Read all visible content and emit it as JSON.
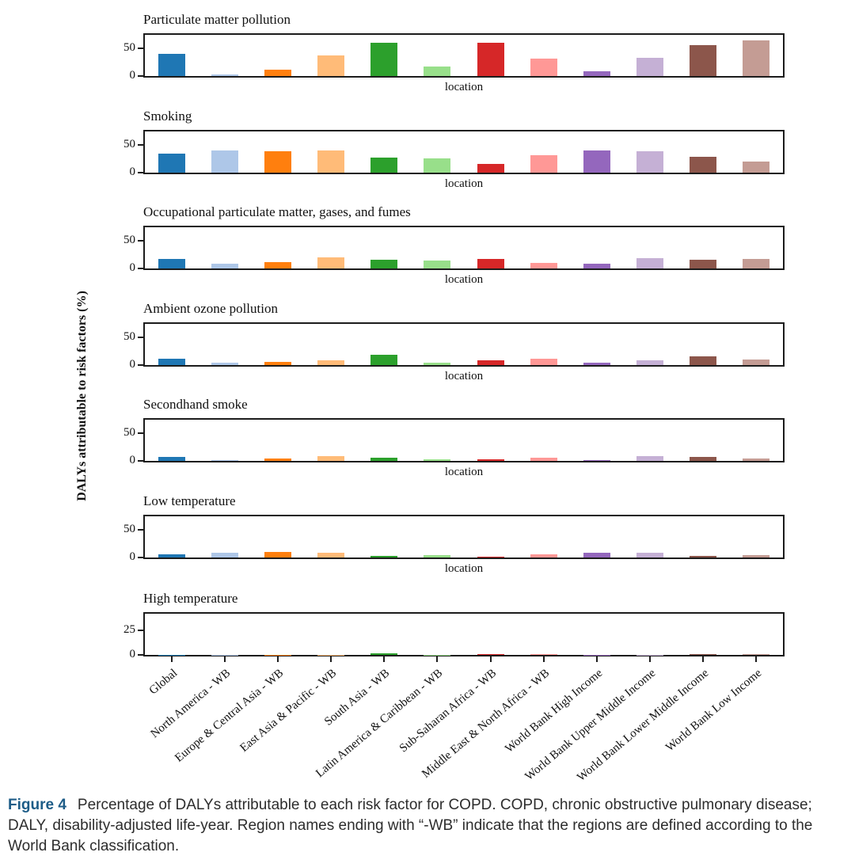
{
  "figure": {
    "ylabel": "DALYs attributable to risk factors (%)",
    "caption_label": "Figure 4",
    "caption_text": "Percentage of DALYs attributable to each risk factor for COPD. COPD, chronic obstructive pulmonary disease; DALY, disability-adjusted life-year. Region names ending with “-WB” indicate that the regions are defined according to the World Bank classification.",
    "caption_label_color": "#1d5c87",
    "axis_color": "#1c1c1c"
  },
  "chart_data": {
    "type": "bar",
    "categories": [
      "Global",
      "North America - WB",
      "Europe & Central Asia - WB",
      "East Asia & Pacific - WB",
      "South Asia - WB",
      "Latin America & Caribbean - WB",
      "Sub-Saharan Africa - WB",
      "Middle East & North Africa - WB",
      "World Bank High Income",
      "World Bank Upper Middle Income",
      "World Bank Lower Middle Income",
      "World Bank Low Income"
    ],
    "bar_colors": [
      "#1f77b4",
      "#aec7e8",
      "#ff7f0e",
      "#ffbb78",
      "#2ca02c",
      "#98df8a",
      "#d62728",
      "#ff9896",
      "#9467bd",
      "#c5b0d5",
      "#8c564b",
      "#c49c94"
    ],
    "shared_xlabel": "location",
    "ylabel": "DALYs attributable to risk factors (%)",
    "legend": "none",
    "grid": false,
    "panels": [
      {
        "title": "Particulate matter pollution",
        "values": [
          41,
          3,
          12,
          38,
          60,
          17,
          60,
          32,
          8,
          33,
          56,
          65
        ],
        "ylim": [
          0,
          75
        ],
        "yticks": [
          0,
          50
        ],
        "xlabel": "location"
      },
      {
        "title": "Smoking",
        "values": [
          34,
          40,
          39,
          41,
          28,
          26,
          16,
          32,
          40,
          39,
          29,
          20
        ],
        "ylim": [
          0,
          75
        ],
        "yticks": [
          0,
          50
        ],
        "xlabel": "location"
      },
      {
        "title": "Occupational particulate matter, gases, and fumes",
        "values": [
          17,
          9,
          12,
          20,
          16,
          14,
          18,
          10,
          9,
          19,
          16,
          17
        ],
        "ylim": [
          0,
          75
        ],
        "yticks": [
          0,
          50
        ],
        "xlabel": "location"
      },
      {
        "title": "Ambient ozone pollution",
        "values": [
          11,
          5,
          6,
          8,
          19,
          5,
          8,
          11,
          5,
          8,
          16,
          10
        ],
        "ylim": [
          0,
          75
        ],
        "yticks": [
          0,
          50
        ],
        "xlabel": "location"
      },
      {
        "title": "Secondhand smoke",
        "values": [
          7,
          2,
          4,
          9,
          6,
          3,
          3,
          6,
          2,
          8,
          7,
          4
        ],
        "ylim": [
          0,
          75
        ],
        "yticks": [
          0,
          50
        ],
        "xlabel": "location"
      },
      {
        "title": "Low temperature",
        "values": [
          6,
          8,
          10,
          8,
          3,
          5,
          2,
          6,
          9,
          9,
          3,
          5
        ],
        "ylim": [
          0,
          75
        ],
        "yticks": [
          0,
          50
        ],
        "xlabel": "location"
      },
      {
        "title": "High temperature",
        "values": [
          0.4,
          0.1,
          0.1,
          0.1,
          1.3,
          0.1,
          0.5,
          0.9,
          0.1,
          0.1,
          0.8,
          0.5
        ],
        "ylim": [
          0,
          42
        ],
        "yticks": [
          0,
          25
        ],
        "xlabel": "",
        "show_category_labels": true
      }
    ]
  }
}
